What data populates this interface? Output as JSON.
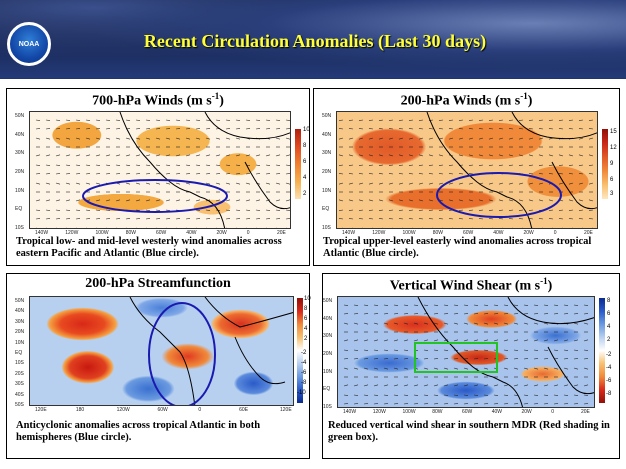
{
  "header": {
    "title": "Recent Circulation Anomalies (Last 30 days)",
    "logo_text": "NOAA"
  },
  "panels": [
    {
      "id": "winds700",
      "title_main": "700-hPa Winds (m s",
      "title_sup": "-1",
      "title_end": ")",
      "caption": "Tropical low- and mid-level westerly wind anomalies across eastern Pacific and Atlantic (Blue circle).",
      "lat_labels": [
        "50N",
        "40N",
        "30N",
        "20N",
        "10N",
        "EQ",
        "10S"
      ],
      "lon_labels": [
        "140W",
        "120W",
        "100W",
        "80W",
        "60W",
        "40W",
        "20W",
        "0",
        "20E"
      ],
      "colorbar": [
        "10",
        "8",
        "6",
        "4",
        "2"
      ]
    },
    {
      "id": "winds200",
      "title_main": "200-hPa Winds (m s",
      "title_sup": "-1",
      "title_end": ")",
      "caption": "Tropical upper-level easterly wind anomalies across tropical Atlantic (Blue circle).",
      "lat_labels": [
        "50N",
        "40N",
        "30N",
        "20N",
        "10N",
        "EQ",
        "10S"
      ],
      "lon_labels": [
        "140W",
        "120W",
        "100W",
        "80W",
        "60W",
        "40W",
        "20W",
        "0",
        "20E"
      ],
      "colorbar": [
        "15",
        "12",
        "9",
        "6",
        "3"
      ]
    },
    {
      "id": "streamfunction",
      "title_main": "200-hPa Streamfunction",
      "caption": "Anticyclonic anomalies across tropical Atlantic in both hemispheres (Blue circle).",
      "lat_labels": [
        "50N",
        "40N",
        "30N",
        "20N",
        "10N",
        "EQ",
        "10S",
        "20S",
        "30S",
        "40S",
        "50S"
      ],
      "lon_labels": [
        "120E",
        "180",
        "120W",
        "60W",
        "0",
        "60E",
        "120E"
      ],
      "colorbar": [
        "10",
        "8",
        "6",
        "4",
        "2",
        "-2",
        "-4",
        "-6",
        "-8",
        "-10"
      ]
    },
    {
      "id": "shear",
      "title_main": "Vertical Wind Shear (m s",
      "title_sup": "-1",
      "title_end": ")",
      "caption": "Reduced vertical wind shear in southern MDR (Red shading in green box).",
      "lat_labels": [
        "50N",
        "40N",
        "30N",
        "20N",
        "10N",
        "EQ",
        "10S"
      ],
      "lon_labels": [
        "140W",
        "120W",
        "100W",
        "80W",
        "60W",
        "40W",
        "20W",
        "0",
        "20E"
      ],
      "colorbar": [
        "8",
        "6",
        "4",
        "2",
        "-2",
        "-4",
        "-6",
        "-8"
      ]
    }
  ],
  "colors": {
    "title_yellow": "#ffff33",
    "anomaly_orange": "#f5a83a",
    "anomaly_red": "#d83a22",
    "stream_blue": "#3a7ad8",
    "circle_blue": "#1a1ab0",
    "box_green": "#22c422"
  }
}
